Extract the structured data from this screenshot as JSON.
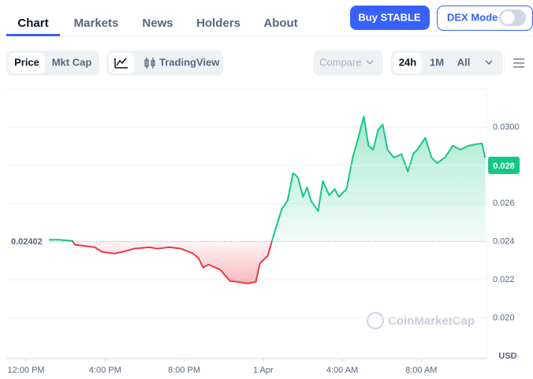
{
  "tabs": [
    "Chart",
    "Markets",
    "News",
    "Holders",
    "About"
  ],
  "buy_button": "Buy STABLE",
  "dex_mode": "DEX Mode",
  "toolbar": {
    "price": "Price",
    "mkt_cap": "Mkt Cap",
    "tradingview": "TradingView",
    "compare": "Compare",
    "ranges": [
      "24h",
      "1M",
      "All"
    ]
  },
  "chart_data": {
    "type": "line",
    "watermark": "CoinMarketCap",
    "currency": "USD",
    "baseline": 0.02402,
    "current_price": 0.028,
    "color_up": "#16c784",
    "color_down": "#ea3943",
    "xlim": [
      -1,
      23.3
    ],
    "ylim": [
      0.018,
      0.032
    ],
    "xticks": [
      {
        "value": 0,
        "label": "12:00 PM"
      },
      {
        "value": 4,
        "label": "4:00 PM"
      },
      {
        "value": 8,
        "label": "8:00 PM"
      },
      {
        "value": 12,
        "label": "1 Apr"
      },
      {
        "value": 16,
        "label": "4:00 AM"
      },
      {
        "value": 20,
        "label": "8:00 AM"
      }
    ],
    "yticks": [
      {
        "value": 0.02,
        "label": "0.020"
      },
      0.022,
      0.024,
      0.026,
      {
        "value": 0.03,
        "label": "0.0300"
      }
    ],
    "grid": true,
    "x": [
      1.16,
      1.67,
      2.35,
      2.47,
      3.47,
      3.86,
      4.46,
      4.86,
      5.46,
      6.25,
      6.65,
      7.25,
      7.85,
      8.45,
      8.73,
      8.96,
      9.24,
      9.84,
      10.32,
      10.64,
      11.24,
      11.63,
      11.83,
      12.23,
      12.63,
      12.95,
      13.23,
      13.51,
      13.75,
      14.02,
      14.22,
      14.42,
      14.78,
      15.02,
      15.34,
      15.62,
      15.82,
      16.22,
      16.53,
      16.81,
      17.09,
      17.33,
      17.57,
      17.81,
      18.05,
      18.29,
      18.61,
      19.0,
      19.32,
      19.6,
      19.8,
      20.2,
      20.52,
      20.8,
      21.2,
      21.59,
      21.99,
      22.39,
      22.79,
      23.07,
      23.23
    ],
    "values": [
      0.0241,
      0.0241,
      0.02404,
      0.02384,
      0.02371,
      0.02346,
      0.02338,
      0.02346,
      0.02363,
      0.02371,
      0.02363,
      0.02371,
      0.02363,
      0.02338,
      0.02313,
      0.02264,
      0.0228,
      0.02252,
      0.02194,
      0.0219,
      0.02181,
      0.0219,
      0.02285,
      0.02326,
      0.0247,
      0.02573,
      0.02614,
      0.02759,
      0.02738,
      0.02635,
      0.02685,
      0.02614,
      0.02561,
      0.02718,
      0.02643,
      0.02676,
      0.02635,
      0.02676,
      0.02841,
      0.02944,
      0.03056,
      0.02903,
      0.02882,
      0.02985,
      0.03014,
      0.02882,
      0.02841,
      0.02858,
      0.02767,
      0.02862,
      0.02882,
      0.02944,
      0.02841,
      0.02812,
      0.02841,
      0.02903,
      0.02882,
      0.02903,
      0.02911,
      0.02915,
      0.02841
    ]
  }
}
